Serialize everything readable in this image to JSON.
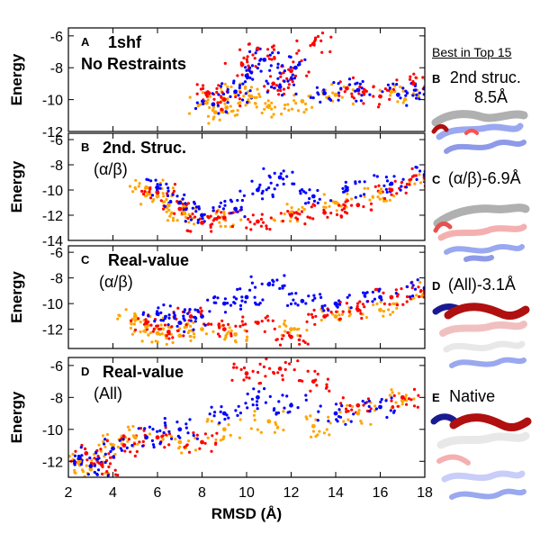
{
  "chart_data": [
    {
      "type": "scatter",
      "panel_letter": "A",
      "title_lines": [
        "1shf",
        "No Restraints"
      ],
      "xlabel": "",
      "ylabel": "Energy",
      "xlim": [
        2,
        18
      ],
      "ylim": [
        -12,
        -5.5
      ],
      "yticks": [
        -6,
        -8,
        -10,
        -12
      ],
      "series": [
        {
          "color": "#ffa500",
          "x": [
            8.2,
            8.6,
            9.1,
            9.5,
            10.2,
            11.0,
            12.5,
            14.0,
            16.5,
            18.0
          ],
          "y": [
            -10.2,
            -10.8,
            -10.5,
            -9.6,
            -9.8,
            -10.4,
            -10.1,
            -9.7,
            -9.5,
            -9.2
          ]
        },
        {
          "color": "#ff0000",
          "x": [
            8.3,
            9.0,
            9.8,
            10.5,
            11.2,
            12.0,
            13.0,
            14.5,
            16.0,
            17.5
          ],
          "y": [
            -9.6,
            -10.0,
            -7.8,
            -6.8,
            -9.0,
            -8.2,
            -6.5,
            -9.3,
            -9.8,
            -9.0
          ]
        },
        {
          "color": "#0000ff",
          "x": [
            8.5,
            9.5,
            10.0,
            10.8,
            11.5,
            12.2,
            13.5,
            15.0,
            16.8,
            18.0
          ],
          "y": [
            -10.3,
            -9.5,
            -8.5,
            -7.5,
            -9.2,
            -8.0,
            -9.6,
            -9.4,
            -9.7,
            -9.3
          ]
        }
      ]
    },
    {
      "type": "scatter",
      "panel_letter": "B",
      "title_lines": [
        "2nd. Struc.",
        "(α/β)"
      ],
      "xlabel": "",
      "ylabel": "Energy",
      "xlim": [
        2,
        18
      ],
      "ylim": [
        -14,
        -5.5
      ],
      "yticks": [
        -6,
        -8,
        -10,
        -12,
        -14
      ],
      "series": [
        {
          "color": "#ffa500",
          "x": [
            5.5,
            6.0,
            6.5,
            7.2,
            8.0,
            9.0,
            12.0,
            14.0,
            16.0,
            18.0
          ],
          "y": [
            -9.8,
            -10.5,
            -11.2,
            -11.8,
            -12.0,
            -12.3,
            -11.8,
            -11.0,
            -10.2,
            -9.2
          ]
        },
        {
          "color": "#ff0000",
          "x": [
            6.0,
            7.0,
            8.0,
            9.0,
            10.5,
            12.0,
            13.5,
            15.0,
            16.5,
            18.0
          ],
          "y": [
            -10.2,
            -11.5,
            -12.6,
            -12.2,
            -12.5,
            -12.0,
            -11.8,
            -11.2,
            -10.0,
            -9.0
          ]
        },
        {
          "color": "#0000ff",
          "x": [
            6.0,
            7.0,
            8.0,
            9.5,
            10.5,
            11.5,
            13.0,
            14.5,
            16.5,
            18.0
          ],
          "y": [
            -9.8,
            -11.0,
            -12.0,
            -11.5,
            -10.0,
            -9.0,
            -10.5,
            -10.0,
            -9.5,
            -8.8
          ]
        }
      ]
    },
    {
      "type": "scatter",
      "panel_letter": "C",
      "title_lines": [
        "Real-value",
        "(α/β)"
      ],
      "xlabel": "",
      "ylabel": "Energy",
      "xlim": [
        2,
        18
      ],
      "ylim": [
        -13.5,
        -5.5
      ],
      "yticks": [
        -6,
        -8,
        -10,
        -12
      ],
      "series": [
        {
          "color": "#ffa500",
          "x": [
            5.0,
            5.5,
            6.0,
            7.0,
            8.0,
            9.5,
            12.0,
            14.0,
            16.0,
            18.0
          ],
          "y": [
            -11.0,
            -11.8,
            -12.3,
            -12.5,
            -12.0,
            -12.4,
            -12.0,
            -11.0,
            -10.5,
            -9.0
          ]
        },
        {
          "color": "#ff0000",
          "x": [
            5.5,
            6.5,
            7.5,
            9.0,
            10.5,
            12.0,
            13.5,
            15.0,
            16.5,
            18.0
          ],
          "y": [
            -11.5,
            -12.2,
            -11.0,
            -12.0,
            -11.5,
            -12.6,
            -11.0,
            -10.5,
            -9.5,
            -9.0
          ]
        },
        {
          "color": "#0000ff",
          "x": [
            6.0,
            7.0,
            8.0,
            9.0,
            10.0,
            11.0,
            12.5,
            14.0,
            16.0,
            18.0
          ],
          "y": [
            -10.8,
            -11.5,
            -11.0,
            -10.0,
            -9.5,
            -8.5,
            -9.8,
            -10.0,
            -9.5,
            -8.8
          ]
        }
      ]
    },
    {
      "type": "scatter",
      "panel_letter": "D",
      "title_lines": [
        "Real-value",
        "(All)"
      ],
      "xlabel": "RMSD (Å)",
      "ylabel": "Energy",
      "xlim": [
        2,
        18
      ],
      "ylim": [
        -13,
        -5.5
      ],
      "yticks": [
        -6,
        -8,
        -10,
        -12
      ],
      "xticks": [
        2,
        4,
        6,
        8,
        10,
        12,
        14,
        16,
        18
      ],
      "series": [
        {
          "color": "#ffa500",
          "x": [
            2.5,
            3.0,
            4.0,
            5.0,
            7.0,
            9.0,
            11.0,
            13.0,
            15.0,
            17.0
          ],
          "y": [
            -12.0,
            -12.5,
            -11.0,
            -10.5,
            -10.8,
            -10.0,
            -9.5,
            -9.8,
            -9.0,
            -8.2
          ]
        },
        {
          "color": "#ff0000",
          "x": [
            2.8,
            3.5,
            4.5,
            6.0,
            8.0,
            10.0,
            11.5,
            13.0,
            15.0,
            17.0
          ],
          "y": [
            -11.5,
            -12.2,
            -11.0,
            -10.5,
            -10.8,
            -6.5,
            -6.2,
            -7.0,
            -8.5,
            -8.0
          ]
        },
        {
          "color": "#0000ff",
          "x": [
            2.5,
            3.0,
            4.0,
            5.5,
            7.0,
            9.0,
            10.5,
            12.0,
            14.0,
            16.0
          ],
          "y": [
            -11.8,
            -12.3,
            -11.2,
            -10.5,
            -10.0,
            -9.0,
            -8.0,
            -8.5,
            -9.0,
            -8.6
          ]
        }
      ]
    }
  ],
  "side": {
    "header": "Best in Top 15",
    "b": {
      "letter": "B",
      "text": "2nd struc.",
      "text2": "8.5Å"
    },
    "c": {
      "letter": "C",
      "text": "(α/β)-6.9Å"
    },
    "d": {
      "letter": "D",
      "text": "(All)-3.1Å"
    },
    "e": {
      "letter": "E",
      "text": "Native"
    }
  },
  "colors": {
    "orange": "#ffa500",
    "red": "#ff0000",
    "blue": "#0000ff",
    "grey": "#b0b0b0",
    "lightblue": "#9aa8f0",
    "darkred": "#b01010",
    "navy": "#1a1a90"
  }
}
